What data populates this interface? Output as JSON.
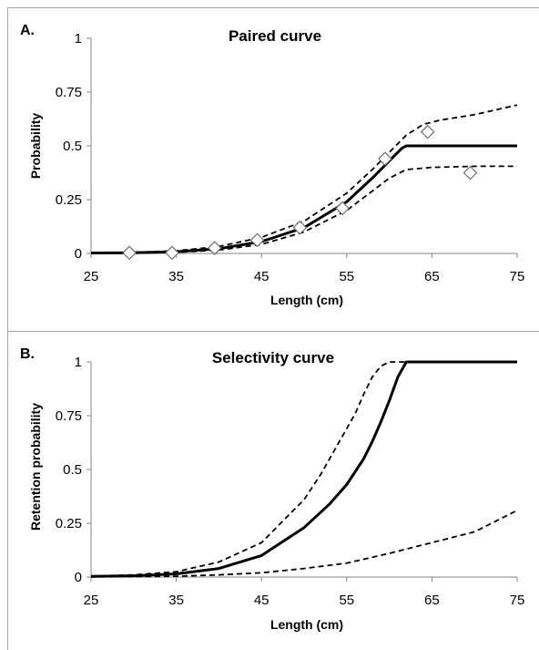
{
  "chart_data": [
    {
      "type": "line",
      "panel_label": "A.",
      "title": "Paired curve",
      "xlabel": "Length (cm)",
      "ylabel": "Probability",
      "xlim": [
        25,
        75
      ],
      "ylim": [
        0,
        1
      ],
      "xticks": [
        25,
        35,
        45,
        55,
        65,
        75
      ],
      "yticks": [
        0,
        0.25,
        0.5,
        0.75,
        1
      ],
      "ytick_labels": [
        "0",
        "0.25",
        "0.5",
        "0.75",
        "1"
      ],
      "grid": false,
      "legend": "none",
      "series": [
        {
          "role": "fit",
          "style": "solid",
          "x": [
            25,
            30,
            35,
            40,
            45,
            50,
            55,
            58,
            60,
            61.5,
            62,
            65,
            70,
            75
          ],
          "y": [
            0.002,
            0.003,
            0.008,
            0.022,
            0.055,
            0.12,
            0.24,
            0.35,
            0.43,
            0.49,
            0.5,
            0.5,
            0.5,
            0.5
          ]
        },
        {
          "role": "upper_ci",
          "style": "dashed",
          "x": [
            25,
            30,
            35,
            40,
            45,
            50,
            55,
            58,
            60,
            62,
            64,
            66,
            70,
            75
          ],
          "y": [
            0.003,
            0.005,
            0.012,
            0.032,
            0.075,
            0.15,
            0.28,
            0.39,
            0.47,
            0.55,
            0.6,
            0.62,
            0.645,
            0.69
          ]
        },
        {
          "role": "lower_ci",
          "style": "dashed",
          "x": [
            25,
            30,
            35,
            40,
            45,
            50,
            55,
            58,
            60,
            62,
            65,
            70,
            75
          ],
          "y": [
            0.001,
            0.002,
            0.005,
            0.016,
            0.042,
            0.1,
            0.2,
            0.29,
            0.35,
            0.39,
            0.4,
            0.405,
            0.405
          ]
        },
        {
          "role": "observed",
          "style": "diamond",
          "x": [
            29.5,
            34.5,
            39.5,
            44.5,
            49.5,
            54.5,
            59.5,
            64.5,
            69.5
          ],
          "y": [
            0.003,
            0.003,
            0.025,
            0.062,
            0.12,
            0.21,
            0.44,
            0.565,
            0.375
          ]
        }
      ]
    },
    {
      "type": "line",
      "panel_label": "B.",
      "title": "Selectivity curve",
      "xlabel": "Length (cm)",
      "ylabel": "Retention probability",
      "xlim": [
        25,
        75
      ],
      "ylim": [
        0,
        1
      ],
      "xticks": [
        25,
        35,
        45,
        55,
        65,
        75
      ],
      "yticks": [
        0,
        0.25,
        0.5,
        0.75,
        1
      ],
      "ytick_labels": [
        "0",
        "0.25",
        "0.5",
        "0.75",
        "1"
      ],
      "grid": false,
      "legend": "none",
      "series": [
        {
          "role": "fit",
          "style": "solid",
          "x": [
            25,
            30,
            35,
            40,
            45,
            50,
            53,
            55,
            57,
            58,
            59,
            60,
            61,
            62,
            65,
            70,
            75
          ],
          "y": [
            0.003,
            0.006,
            0.015,
            0.04,
            0.1,
            0.23,
            0.34,
            0.43,
            0.55,
            0.63,
            0.72,
            0.82,
            0.93,
            1,
            1,
            1,
            1
          ]
        },
        {
          "role": "upper_ci",
          "style": "dashed",
          "x": [
            25,
            30,
            35,
            40,
            45,
            50,
            52,
            54,
            56,
            57,
            58,
            59,
            60,
            62,
            65,
            70,
            75
          ],
          "y": [
            0.004,
            0.01,
            0.025,
            0.07,
            0.16,
            0.36,
            0.48,
            0.62,
            0.76,
            0.85,
            0.93,
            0.98,
            1,
            1,
            1,
            1,
            1
          ]
        },
        {
          "role": "lower_ci",
          "style": "dashed",
          "x": [
            25,
            30,
            35,
            40,
            45,
            50,
            55,
            60,
            65,
            70,
            73,
            75
          ],
          "y": [
            0.001,
            0.002,
            0.004,
            0.01,
            0.02,
            0.04,
            0.065,
            0.11,
            0.16,
            0.21,
            0.27,
            0.31
          ]
        }
      ]
    }
  ]
}
